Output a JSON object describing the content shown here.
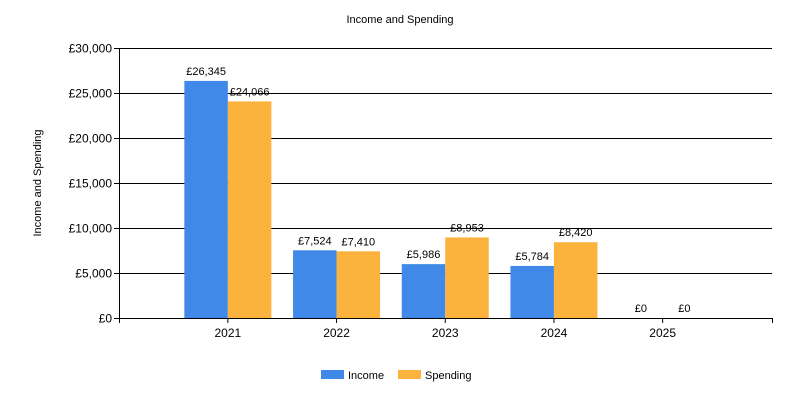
{
  "chart_data": {
    "type": "bar",
    "title": "Income and Spending",
    "xlabel": "",
    "ylabel": "Income and Spending",
    "categories": [
      "2021",
      "2022",
      "2023",
      "2024",
      "2025"
    ],
    "series": [
      {
        "name": "Income",
        "color": "#4189e8",
        "values": [
          26345,
          7524,
          5986,
          5784,
          0
        ],
        "labels": [
          "£26,345",
          "£7,524",
          "£5,986",
          "£5,784",
          "£0"
        ]
      },
      {
        "name": "Spending",
        "color": "#fbb33e",
        "values": [
          24066,
          7410,
          8953,
          8420,
          0
        ],
        "labels": [
          "£24,066",
          "£7,410",
          "£8,953",
          "£8,420",
          "£0"
        ]
      }
    ],
    "ylim": [
      0,
      30000
    ],
    "yticks": [
      0,
      5000,
      10000,
      15000,
      20000,
      25000,
      30000
    ],
    "ytick_labels": [
      "£0",
      "£5,000",
      "£10,000",
      "£15,000",
      "£20,000",
      "£25,000",
      "£30,000"
    ],
    "grid": true,
    "legend_position": "bottom-center"
  }
}
